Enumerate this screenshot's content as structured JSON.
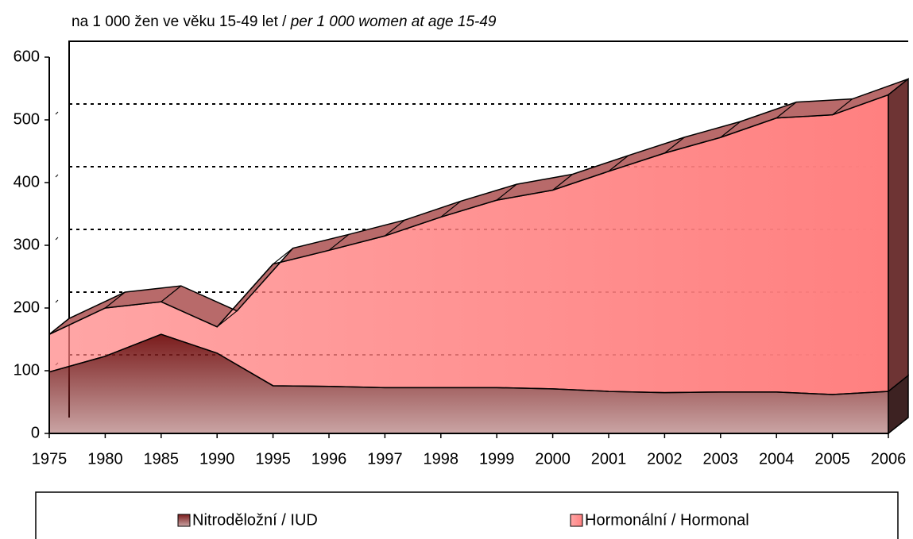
{
  "chart_data": {
    "type": "area3d",
    "title": [
      "na 1 000 žen ve věku 15-49 let /",
      "per 1 000 women at age 15-49"
    ],
    "categories": [
      "1975",
      "1980",
      "1985",
      "1990",
      "1995",
      "1996",
      "1997",
      "1998",
      "1999",
      "2000",
      "2001",
      "2002",
      "2003",
      "2004",
      "2005",
      "2006"
    ],
    "series": [
      {
        "name": "Nitroděložní / IUD",
        "color": "#7a1c1c",
        "values": [
          98,
          123,
          158,
          128,
          76,
          75,
          73,
          73,
          73,
          71,
          67,
          65,
          66,
          66,
          62,
          67
        ]
      },
      {
        "name": "Hormonální / Hormonal",
        "color": "#ff8080",
        "values": [
          60,
          77,
          52,
          42,
          194,
          217,
          242,
          272,
          299,
          317,
          351,
          382,
          406,
          437,
          446,
          473
        ]
      }
    ],
    "stacked": true,
    "ylim": [
      0,
      600
    ],
    "yticks": [
      0,
      100,
      200,
      300,
      400,
      500,
      600
    ],
    "grid": true
  }
}
